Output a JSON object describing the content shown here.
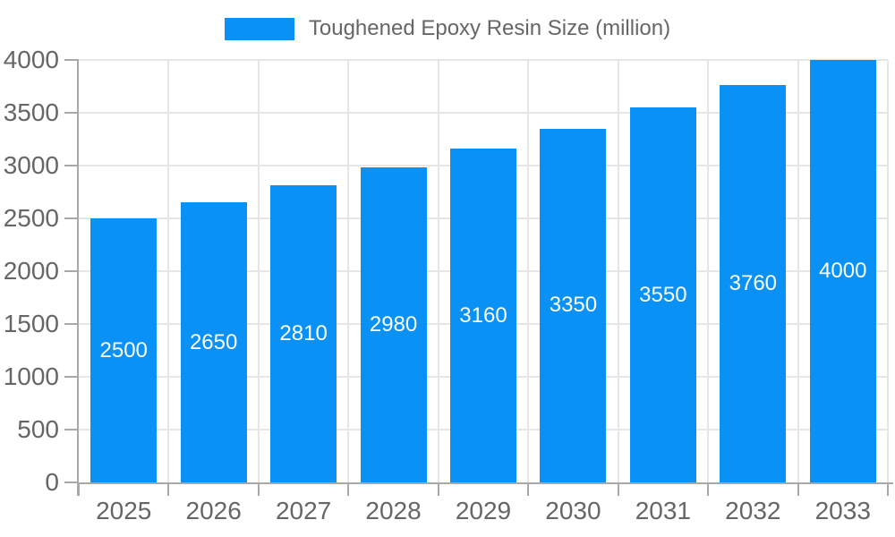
{
  "chart_data": {
    "type": "bar",
    "title": "",
    "legend": [
      "Toughened Epoxy Resin Size (million)"
    ],
    "legend_position": "top",
    "categories": [
      "2025",
      "2026",
      "2027",
      "2028",
      "2029",
      "2030",
      "2031",
      "2032",
      "2033"
    ],
    "values": [
      2500,
      2650,
      2810,
      2980,
      3160,
      3350,
      3550,
      3760,
      4000
    ],
    "xlabel": "",
    "ylabel": "",
    "ylim": [
      0,
      4000
    ],
    "ytick_step": 500,
    "yticks": [
      0,
      500,
      1000,
      1500,
      2000,
      2500,
      3000,
      3500,
      4000
    ],
    "grid": true,
    "bar_labels_shown": true,
    "colors": {
      "bar": "#0991f5",
      "bar_label": "#ffffff",
      "axis": "#a8a8a8",
      "grid": "#e6e6e6",
      "tick_label": "#666666",
      "legend_text": "#666666",
      "background": "#ffffff"
    }
  }
}
